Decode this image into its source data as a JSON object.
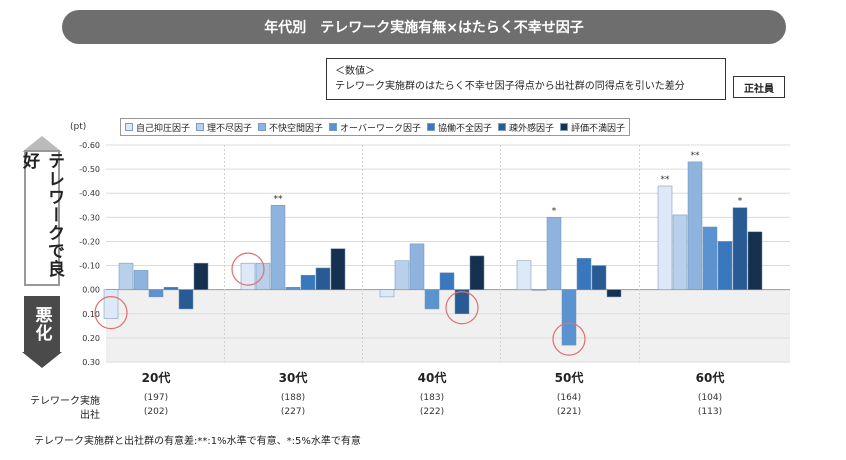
{
  "title": "年代別　テレワーク実施有無×はたらく不幸せ因子",
  "note": {
    "line1": "＜数値＞",
    "line2": "テレワーク実施群のはたらく不幸せ因子得点から出社群の同得点を引いた差分"
  },
  "badge": "正社員",
  "unit": "(pt)",
  "side": {
    "good": "テレワークで良好",
    "bad": "悪化"
  },
  "row_labels": {
    "telework": "テレワーク実施",
    "office": "出社"
  },
  "footnote": "テレワーク実施群と出社群の有意差:**:1%水準で有意、*:5%水準で有意",
  "counts": [
    {
      "telework": "(197)",
      "office": "(202)"
    },
    {
      "telework": "(188)",
      "office": "(227)"
    },
    {
      "telework": "(183)",
      "office": "(222)"
    },
    {
      "telework": "(164)",
      "office": "(221)"
    },
    {
      "telework": "(104)",
      "office": "(113)"
    }
  ],
  "chart_data": {
    "type": "bar",
    "categories": [
      "20代",
      "30代",
      "40代",
      "50代",
      "60代"
    ],
    "yticks": [
      "-0.60",
      "-0.50",
      "-0.40",
      "-0.30",
      "-0.20",
      "-0.10",
      "0.00",
      "0.10",
      "0.20",
      "0.30"
    ],
    "ylim": [
      -0.6,
      0.3
    ],
    "y_inverted": true,
    "series": [
      {
        "name": "自己抑圧因子",
        "color": "#dde9f6",
        "values": [
          0.12,
          -0.11,
          0.03,
          -0.12,
          -0.43
        ]
      },
      {
        "name": "理不尽因子",
        "color": "#b8d0ea",
        "values": [
          -0.11,
          -0.11,
          -0.12,
          0.0,
          -0.31
        ]
      },
      {
        "name": "不快空間因子",
        "color": "#8eb4de",
        "values": [
          -0.08,
          -0.35,
          -0.19,
          -0.3,
          -0.53
        ]
      },
      {
        "name": "オーバーワーク因子",
        "color": "#5b93d0",
        "values": [
          0.03,
          -0.01,
          0.08,
          0.23,
          -0.26
        ]
      },
      {
        "name": "協働不全因子",
        "color": "#3a78be",
        "values": [
          -0.01,
          -0.06,
          -0.07,
          -0.13,
          -0.2
        ]
      },
      {
        "name": "疎外感因子",
        "color": "#285a94",
        "values": [
          0.08,
          -0.09,
          0.1,
          -0.1,
          -0.34
        ]
      },
      {
        "name": "評価不満因子",
        "color": "#16304f",
        "values": [
          -0.11,
          -0.17,
          -0.14,
          0.03,
          -0.24
        ]
      }
    ],
    "significance": [
      {
        "category": 1,
        "series": 2,
        "mark": "**"
      },
      {
        "category": 3,
        "series": 2,
        "mark": "*"
      },
      {
        "category": 4,
        "series": 0,
        "mark": "**"
      },
      {
        "category": 4,
        "series": 2,
        "mark": "**"
      },
      {
        "category": 4,
        "series": 5,
        "mark": "*"
      }
    ],
    "circled": [
      {
        "category": 0,
        "series": 0
      },
      {
        "category": 1,
        "series": 0
      },
      {
        "category": 2,
        "series": 5
      },
      {
        "category": 3,
        "series": 3
      }
    ]
  }
}
